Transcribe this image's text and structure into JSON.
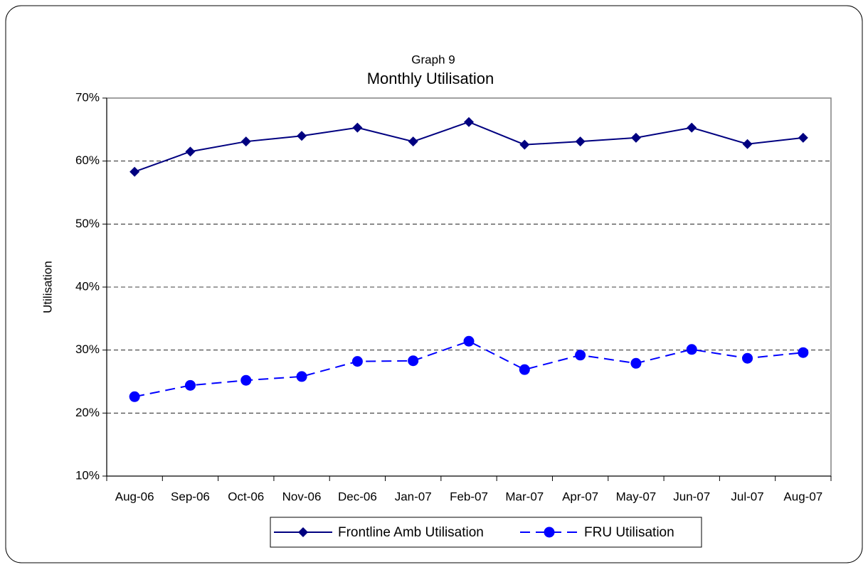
{
  "chart_data": {
    "type": "line",
    "title": "Graph 9",
    "subtitle": "Monthly Utilisation",
    "y_label": "Utilisation",
    "categories": [
      "Aug-06",
      "Sep-06",
      "Oct-06",
      "Nov-06",
      "Dec-06",
      "Jan-07",
      "Feb-07",
      "Mar-07",
      "Apr-07",
      "May-07",
      "Jun-07",
      "Jul-07",
      "Aug-07"
    ],
    "series": [
      {
        "name": "Frontline Amb Utilisation",
        "color": "#000080",
        "marker": "diamond",
        "dash": false,
        "values": [
          58.3,
          61.5,
          63.1,
          64.0,
          65.3,
          63.1,
          66.2,
          62.6,
          63.1,
          63.7,
          65.3,
          62.7,
          63.7
        ]
      },
      {
        "name": "FRU Utilisation",
        "color": "#0000ff",
        "marker": "circle",
        "dash": true,
        "values": [
          22.6,
          24.4,
          25.2,
          25.8,
          28.2,
          28.3,
          31.4,
          26.9,
          29.2,
          27.9,
          30.1,
          28.7,
          29.6
        ]
      }
    ],
    "ylim": [
      10,
      70
    ],
    "yticks": [
      {
        "value": 10,
        "label": "10%"
      },
      {
        "value": 20,
        "label": "20%"
      },
      {
        "value": 30,
        "label": "30%"
      },
      {
        "value": 40,
        "label": "40%"
      },
      {
        "value": 50,
        "label": "50%"
      },
      {
        "value": 60,
        "label": "60%"
      },
      {
        "value": 70,
        "label": "70%"
      }
    ],
    "grid": true,
    "legend": "bottom"
  }
}
